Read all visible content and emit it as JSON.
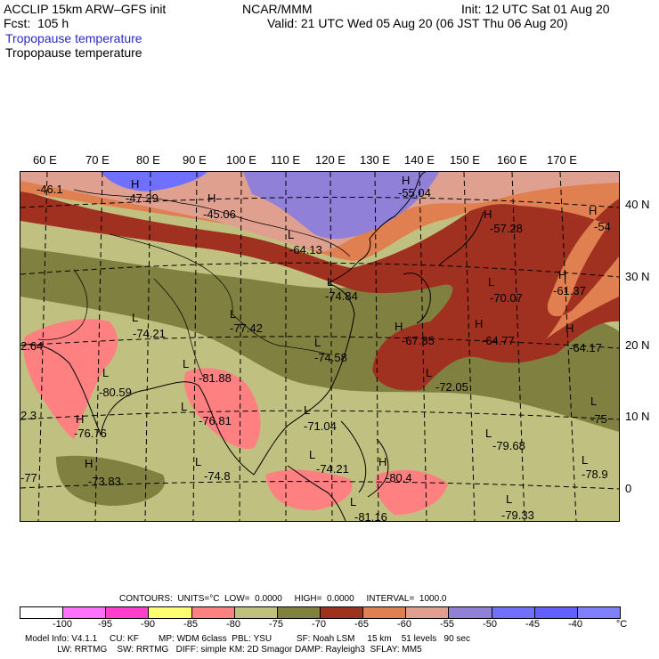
{
  "header": {
    "model_line": "ACCLIP 15km ARW–GFS init",
    "forecast_line": "Fcst:  105 h",
    "org": "NCAR/MMM",
    "init_line": "Init: 12 UTC Sat 01 Aug 20",
    "valid_line": "Valid: 21 UTC Wed 05 Aug 20 (06 JST Thu 06 Aug 20)",
    "field_title_blue": "Tropopause temperature",
    "field_title_black": "Tropopause temperature"
  },
  "axes": {
    "lon_labels": [
      "60 E",
      "70 E",
      "80 E",
      "90 E",
      "100 E",
      "110 E",
      "120 E",
      "130 E",
      "140 E",
      "150 E",
      "160 E",
      "170 E"
    ],
    "lat_labels": [
      "40 N",
      "30 N",
      "20 N",
      "10 N",
      "0"
    ]
  },
  "map_labels": [
    {
      "kind": "H",
      "value": "-46.1"
    },
    {
      "kind": "H",
      "value": "-47.29"
    },
    {
      "kind": "H",
      "value": "-45.06"
    },
    {
      "kind": "L",
      "value": "-64.13"
    },
    {
      "kind": "H",
      "value": "-55.04"
    },
    {
      "kind": "H",
      "value": "-57.28"
    },
    {
      "kind": "H",
      "value": "-54"
    },
    {
      "kind": "L",
      "value": "-74.84"
    },
    {
      "kind": "L",
      "value": "-70.07"
    },
    {
      "kind": "H",
      "value": "-61.37"
    },
    {
      "kind": "L",
      "value": "-77.42"
    },
    {
      "kind": "L",
      "value": "-74.21"
    },
    {
      "kind": "H",
      "value": "-67.85"
    },
    {
      "kind": "H",
      "value": "-64.77"
    },
    {
      "kind": "H",
      "value": "-64.17"
    },
    {
      "kind": "",
      "value": "2.64"
    },
    {
      "kind": "L",
      "value": "-74.58"
    },
    {
      "kind": "L",
      "value": "-80.59"
    },
    {
      "kind": "L",
      "value": "-81.88"
    },
    {
      "kind": "L",
      "value": "-72.05"
    },
    {
      "kind": "",
      "value": "2.3"
    },
    {
      "kind": "L",
      "value": "-76.81"
    },
    {
      "kind": "L",
      "value": "-71.04"
    },
    {
      "kind": "L",
      "value": "-75"
    },
    {
      "kind": "H",
      "value": "-76.76"
    },
    {
      "kind": "L",
      "value": "-79.68"
    },
    {
      "kind": "",
      "value": "-77"
    },
    {
      "kind": "H",
      "value": "-73.83"
    },
    {
      "kind": "L",
      "value": "-74.8"
    },
    {
      "kind": "L",
      "value": "-74.21"
    },
    {
      "kind": "H",
      "value": "-80.4"
    },
    {
      "kind": "L",
      "value": "-78.9"
    },
    {
      "kind": "L",
      "value": "-79.33"
    },
    {
      "kind": "L",
      "value": "-81.16"
    }
  ],
  "contour_info": {
    "contours": "CONTOURS:  UNITS=°C  LOW=  0.0000     HIGH=  0.0000     INTERVAL=  1000.0"
  },
  "colorbar": {
    "colors": [
      "#ffffff",
      "#ff70ff",
      "#ff40c8",
      "#ffff70",
      "#ff8080",
      "#c0c080",
      "#808040",
      "#a03020",
      "#e08050",
      "#e0a090",
      "#9080d8",
      "#7070ff",
      "#6060ff",
      "#7f7fff"
    ],
    "ticks": [
      "-100",
      "-95",
      "-90",
      "-85",
      "-80",
      "-75",
      "-70",
      "-65",
      "-60",
      "-55",
      "-50",
      "-45",
      "-40",
      "°C"
    ]
  },
  "model_info": {
    "line1": "Model Info: V4.1.1     CU: KF        MP: WDM 6class  PBL: YSU          SF: Noah LSM     15 km    51 levels   90 sec",
    "line2": "             LW: RRTMG    SW: RRTMG   DIFF: simple KM: 2D Smagor DAMP: Rayleigh3  SFLAY: MM5"
  }
}
